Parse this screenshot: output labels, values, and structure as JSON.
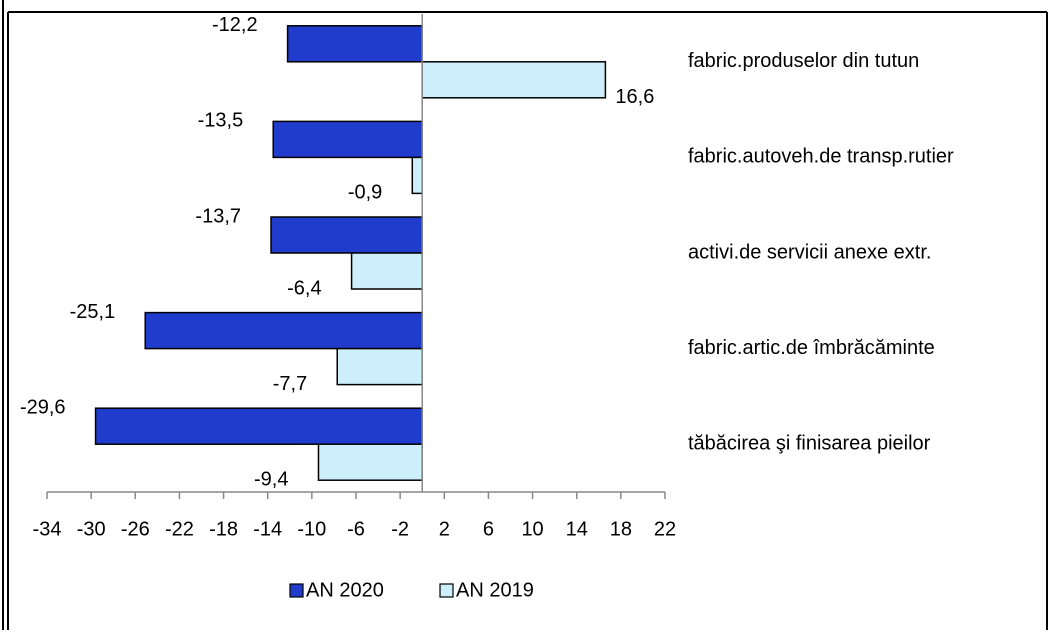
{
  "chart_data": {
    "type": "bar",
    "orientation": "horizontal",
    "categories": [
      "fabric.produselor din tutun",
      "fabric.autoveh.de transp.rutier",
      "activi.de servicii anexe extr.",
      "fabric.artic.de îmbrăcăminte",
      "tăbăcirea şi finisarea pieilor"
    ],
    "series": [
      {
        "name": "AN 2020",
        "color": "#1f3ccc",
        "values": [
          -12.2,
          -13.5,
          -13.7,
          -25.1,
          -29.6
        ],
        "value_labels": [
          "-12,2",
          "-13,5",
          "-13,7",
          "-25,1",
          "-29,6"
        ]
      },
      {
        "name": "AN 2019",
        "color": "#cdeefb",
        "values": [
          16.6,
          -0.9,
          -6.4,
          -7.7,
          -9.4
        ],
        "value_labels": [
          "16,6",
          "-0,9",
          "-6,4",
          "-7,7",
          "-9,4"
        ]
      }
    ],
    "xlim": [
      -34,
      22
    ],
    "xticks": [
      -34,
      -30,
      -26,
      -22,
      -18,
      -14,
      -10,
      -6,
      -2,
      2,
      6,
      10,
      14,
      18,
      22
    ],
    "grid": false,
    "legend": "bottom"
  }
}
